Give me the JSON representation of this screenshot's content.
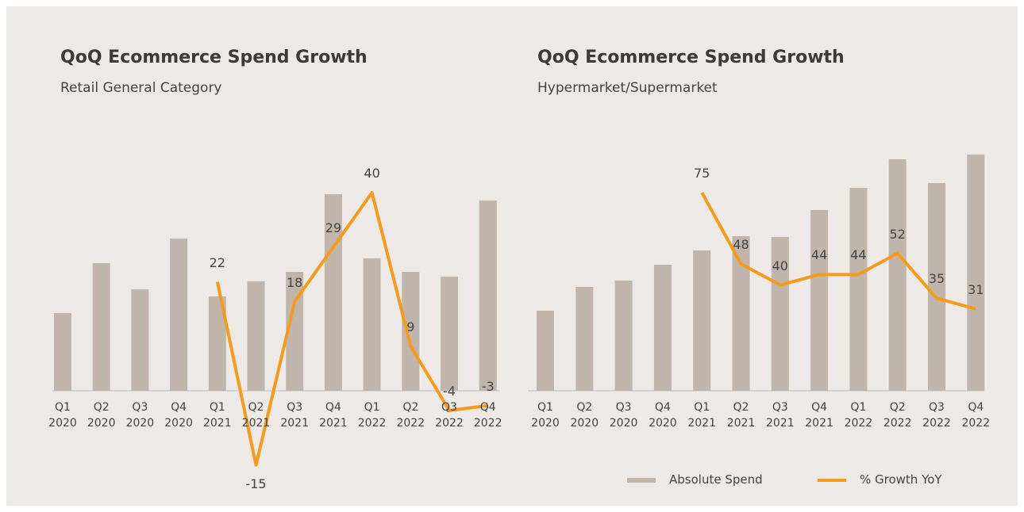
{
  "chart_data": [
    {
      "type": "bar-line",
      "title": "QoQ Ecommerce Spend Growth",
      "subtitle": "Retail General Category",
      "categories": [
        "Q1\n2020",
        "Q2\n2020",
        "Q3\n2020",
        "Q4\n2020",
        "Q1\n2021",
        "Q2\n2021",
        "Q3\n2021",
        "Q4\n2021",
        "Q1\n2022",
        "Q2\n2022",
        "Q3\n2022",
        "Q4\n2022"
      ],
      "series": [
        {
          "name": "Absolute Spend",
          "color": "#bfb5aa",
          "values": [
            98,
            161,
            128,
            192,
            119,
            138,
            150,
            248,
            167,
            150,
            144,
            240
          ]
        },
        {
          "name": "% Growth YoY",
          "color": "#f59a1b",
          "values": [
            null,
            null,
            null,
            null,
            22,
            -15,
            18,
            29,
            40,
            9,
            -4,
            -3
          ]
        }
      ]
    },
    {
      "type": "bar-line",
      "title": "QoQ Ecommerce Spend Growth",
      "subtitle": "Hypermarket/Supermarket",
      "categories": [
        "Q1\n2020",
        "Q2\n2020",
        "Q3\n2020",
        "Q4\n2020",
        "Q1\n2021",
        "Q2\n2021",
        "Q3\n2021",
        "Q4\n2021",
        "Q1\n2022",
        "Q2\n2022",
        "Q3\n2022",
        "Q4\n2022"
      ],
      "series": [
        {
          "name": "Absolute Spend",
          "color": "#bfb5aa",
          "values": [
            101,
            131,
            139,
            159,
            177,
            195,
            194,
            228,
            256,
            292,
            262,
            298
          ]
        },
        {
          "name": "% Growth YoY",
          "color": "#f59a1b",
          "values": [
            null,
            null,
            null,
            null,
            75,
            48,
            40,
            44,
            44,
            52,
            35,
            31
          ]
        }
      ]
    }
  ]
}
